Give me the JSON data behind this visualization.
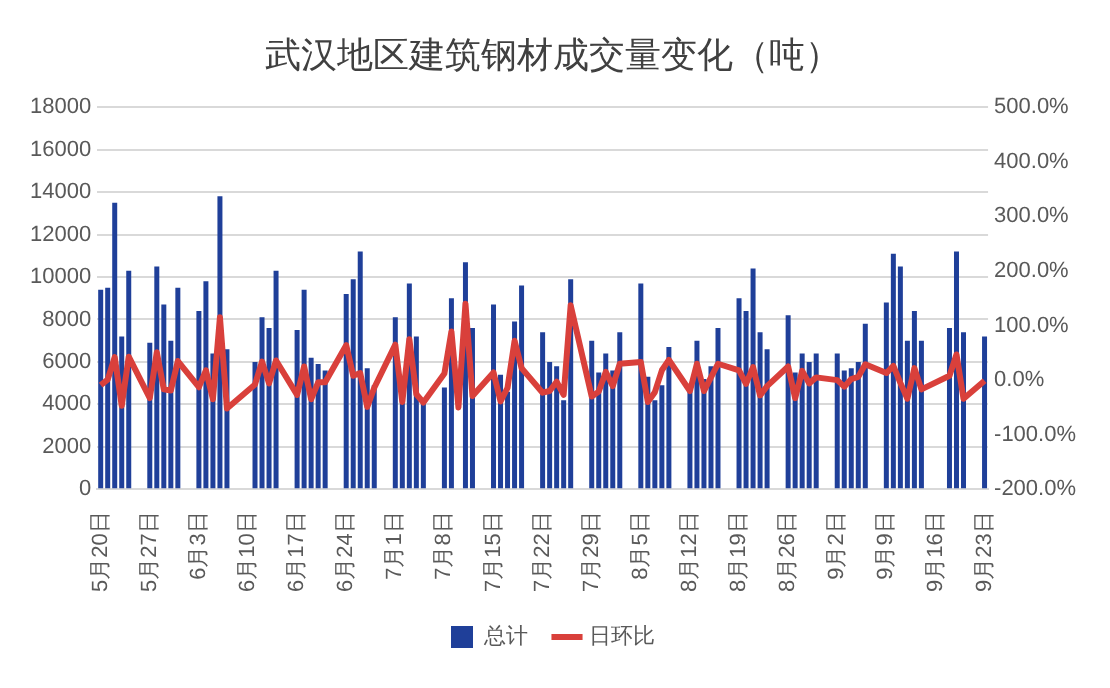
{
  "chart_data": {
    "type": "bar",
    "title": "武汉地区建筑钢材成交量变化（吨）",
    "categories": [
      "5月20日",
      null,
      null,
      null,
      null,
      null,
      null,
      "5月27日",
      null,
      null,
      null,
      null,
      null,
      null,
      "6月3日",
      null,
      null,
      null,
      null,
      null,
      null,
      "6月10日",
      null,
      null,
      null,
      null,
      null,
      null,
      "6月17日",
      null,
      null,
      null,
      null,
      null,
      null,
      "6月24日",
      null,
      null,
      null,
      null,
      null,
      null,
      "7月1日",
      null,
      null,
      null,
      null,
      null,
      null,
      "7月8日",
      null,
      null,
      null,
      null,
      null,
      null,
      "7月15日",
      null,
      null,
      null,
      null,
      null,
      null,
      "7月22日",
      null,
      null,
      null,
      null,
      null,
      null,
      "7月29日",
      null,
      null,
      null,
      null,
      null,
      null,
      "8月5日",
      null,
      null,
      null,
      null,
      null,
      null,
      "8月12日",
      null,
      null,
      null,
      null,
      null,
      null,
      "8月19日",
      null,
      null,
      null,
      null,
      null,
      null,
      "8月26日",
      null,
      null,
      null,
      null,
      null,
      null,
      "9月2日",
      null,
      null,
      null,
      null,
      null,
      null,
      "9月9日",
      null,
      null,
      null,
      null,
      null,
      null,
      "9月16日",
      null,
      null,
      null,
      null,
      null,
      null,
      "9月23日"
    ],
    "series": [
      {
        "name": "总计",
        "color": "#1f3f99",
        "values": [
          9400,
          9500,
          13500,
          7200,
          10300,
          null,
          null,
          6900,
          10500,
          8700,
          7000,
          9500,
          null,
          null,
          8400,
          9800,
          6400,
          13800,
          6600,
          null,
          null,
          null,
          6000,
          8100,
          7600,
          10300,
          null,
          null,
          7500,
          9400,
          6200,
          5900,
          5600,
          null,
          null,
          9200,
          9900,
          11200,
          5700,
          4900,
          null,
          null,
          8100,
          4300,
          9700,
          7200,
          4300,
          null,
          null,
          4800,
          9000,
          null,
          10700,
          7600,
          null,
          null,
          8700,
          5400,
          4600,
          7900,
          9600,
          null,
          null,
          7400,
          6000,
          5800,
          4200,
          9900,
          null,
          null,
          7000,
          5500,
          6400,
          5600,
          7400,
          null,
          null,
          9700,
          5300,
          4200,
          4900,
          6700,
          null,
          null,
          4600,
          7000,
          5200,
          5800,
          7600,
          null,
          null,
          9000,
          8400,
          10400,
          7400,
          6600,
          null,
          null,
          8200,
          5500,
          6400,
          6000,
          6400,
          null,
          null,
          6400,
          5600,
          5700,
          6000,
          7800,
          null,
          null,
          8800,
          11100,
          10500,
          7000,
          8400,
          7000,
          null,
          null,
          null,
          7600,
          11200,
          7400,
          null,
          null,
          7200
        ]
      },
      {
        "name": "日环比",
        "type": "line",
        "axis": "y2",
        "color": "#d9403b",
        "values": [
          -9,
          1,
          42,
          -47,
          43,
          null,
          null,
          -33,
          51,
          -17,
          -19,
          35,
          null,
          null,
          -13,
          18,
          -35,
          115,
          -52,
          null,
          null,
          null,
          -8,
          34,
          -6,
          36,
          null,
          null,
          -27,
          25,
          -35,
          -4,
          -4,
          null,
          null,
          64,
          8,
          13,
          -49,
          -14,
          null,
          null,
          65,
          -40,
          75,
          -26,
          -41,
          null,
          null,
          12,
          89,
          -50,
          140,
          -29,
          null,
          null,
          14,
          -39,
          -14,
          72,
          22,
          null,
          null,
          -23,
          -20,
          -3,
          -27,
          137,
          null,
          null,
          -30,
          -21,
          15,
          -11,
          30,
          null,
          null,
          33,
          -40,
          -22,
          18,
          37,
          null,
          null,
          -20,
          30,
          -20,
          5,
          30,
          null,
          null,
          18,
          -7,
          24,
          -28,
          -11,
          null,
          null,
          25,
          -33,
          17,
          -6,
          5,
          null,
          null,
          0,
          -12,
          2,
          6,
          29,
          null,
          null,
          13,
          26,
          -5,
          -34,
          22,
          -17,
          null,
          null,
          null,
          8,
          47,
          -34,
          null,
          null,
          -1
        ]
      }
    ],
    "ylim": [
      0,
      18000
    ],
    "yticks": [
      0,
      2000,
      4000,
      6000,
      8000,
      10000,
      12000,
      14000,
      16000,
      18000
    ],
    "y2lim": [
      -200,
      500
    ],
    "y2ticks": [
      {
        "value": -200,
        "label": "-200.0%"
      },
      {
        "value": -100,
        "label": "-100.0%"
      },
      {
        "value": 0,
        "label": "0.0%"
      },
      {
        "value": 100,
        "label": "100.0%"
      },
      {
        "value": 200,
        "label": "200.0%"
      },
      {
        "value": 300,
        "label": "300.0%"
      },
      {
        "value": 400,
        "label": "400.0%"
      },
      {
        "value": 500,
        "label": "500.0%"
      }
    ],
    "grid": "y",
    "legend": "bottom"
  }
}
